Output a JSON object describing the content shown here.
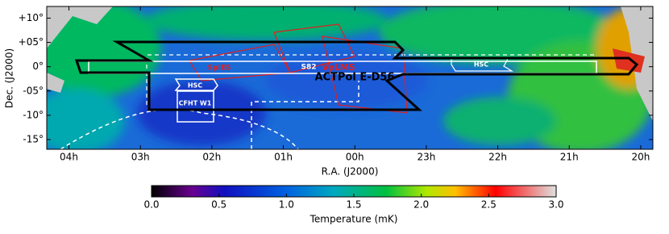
{
  "chart_data": {
    "type": "skymap",
    "xlabel": "R.A. (J2000)",
    "ylabel": "Dec. (J2000)",
    "xlim": [
      4.31,
      -4.17
    ],
    "xticks": [
      {
        "value": 4,
        "label": "04h"
      },
      {
        "value": 3,
        "label": "03h"
      },
      {
        "value": 2,
        "label": "02h"
      },
      {
        "value": 1,
        "label": "01h"
      },
      {
        "value": 0,
        "label": "00h"
      },
      {
        "value": -1,
        "label": "23h"
      },
      {
        "value": -2,
        "label": "22h"
      },
      {
        "value": -3,
        "label": "21h"
      },
      {
        "value": -4,
        "label": "20h"
      }
    ],
    "ylim": [
      -17,
      12.4
    ],
    "yticks": [
      {
        "value": 10,
        "label": "+10°"
      },
      {
        "value": 5,
        "label": "+05°"
      },
      {
        "value": 0,
        "label": "0°"
      },
      {
        "value": -5,
        "label": "-05°"
      },
      {
        "value": -10,
        "label": "-10°"
      },
      {
        "value": -15,
        "label": "-15°"
      }
    ],
    "colorbar": {
      "label": "Temperature (mK)",
      "lim": [
        0,
        3
      ],
      "ticks": [
        {
          "value": 0,
          "label": "0.0"
        },
        {
          "value": 0.5,
          "label": "0.5"
        },
        {
          "value": 1,
          "label": "1.0"
        },
        {
          "value": 1.5,
          "label": "1.5"
        },
        {
          "value": 2,
          "label": "2.0"
        },
        {
          "value": 2.5,
          "label": "2.5"
        },
        {
          "value": 3,
          "label": "3.0"
        }
      ]
    },
    "annotations": {
      "actpol": "ACTPol E-D56",
      "s82": "S82",
      "hsc_east": "HSC",
      "hsc_west": "HSC",
      "cfht": "CFHT W1",
      "spies": "SpIES",
      "velms": "VeLMS"
    }
  }
}
